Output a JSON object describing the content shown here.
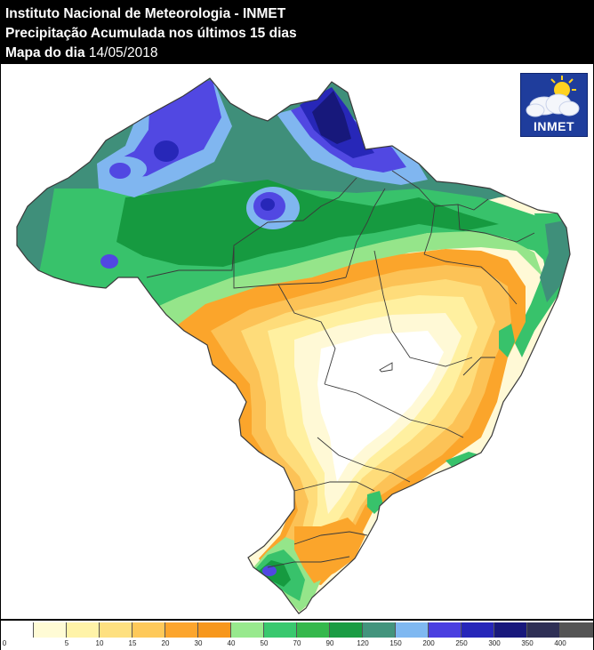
{
  "header": {
    "line1": "Instituto Nacional de Meteorologia - INMET",
    "line2": "Precipitação Acumulada nos últimos 15 dias",
    "line3_label": "Mapa do dia",
    "line3_date": "14/05/2018"
  },
  "logo": {
    "text": "INMET",
    "icon": "cloud-sun-icon"
  },
  "legend": {
    "ticks": [
      "0",
      "5",
      "10",
      "15",
      "20",
      "30",
      "40",
      "50",
      "70",
      "90",
      "120",
      "150",
      "200",
      "250",
      "300",
      "350",
      "400"
    ],
    "colors": [
      "#ffffff",
      "#fffbd5",
      "#fff3a8",
      "#fee080",
      "#fec95a",
      "#fca52d",
      "#f7971c",
      "#98e98d",
      "#39c86e",
      "#35b84c",
      "#1a9c43",
      "#43947d",
      "#7fb8f1",
      "#4a3fe0",
      "#2626b9",
      "#18187c",
      "#2e2f55",
      "#545454"
    ]
  },
  "map": {
    "colors": {
      "none": "#ffffff",
      "very_light": "#fff9d6",
      "light_yellow": "#fff0a0",
      "yellow": "#fedc7a",
      "orange_light": "#fcc256",
      "orange": "#fba52b",
      "light_green": "#95e58a",
      "green": "#38c26b",
      "dark_green": "#169a40",
      "teal": "#3f8f7a",
      "light_blue": "#80b6f0",
      "violet": "#5148e2",
      "blue": "#2727b8",
      "navy": "#17187b",
      "border": "#3a3a3a"
    }
  }
}
